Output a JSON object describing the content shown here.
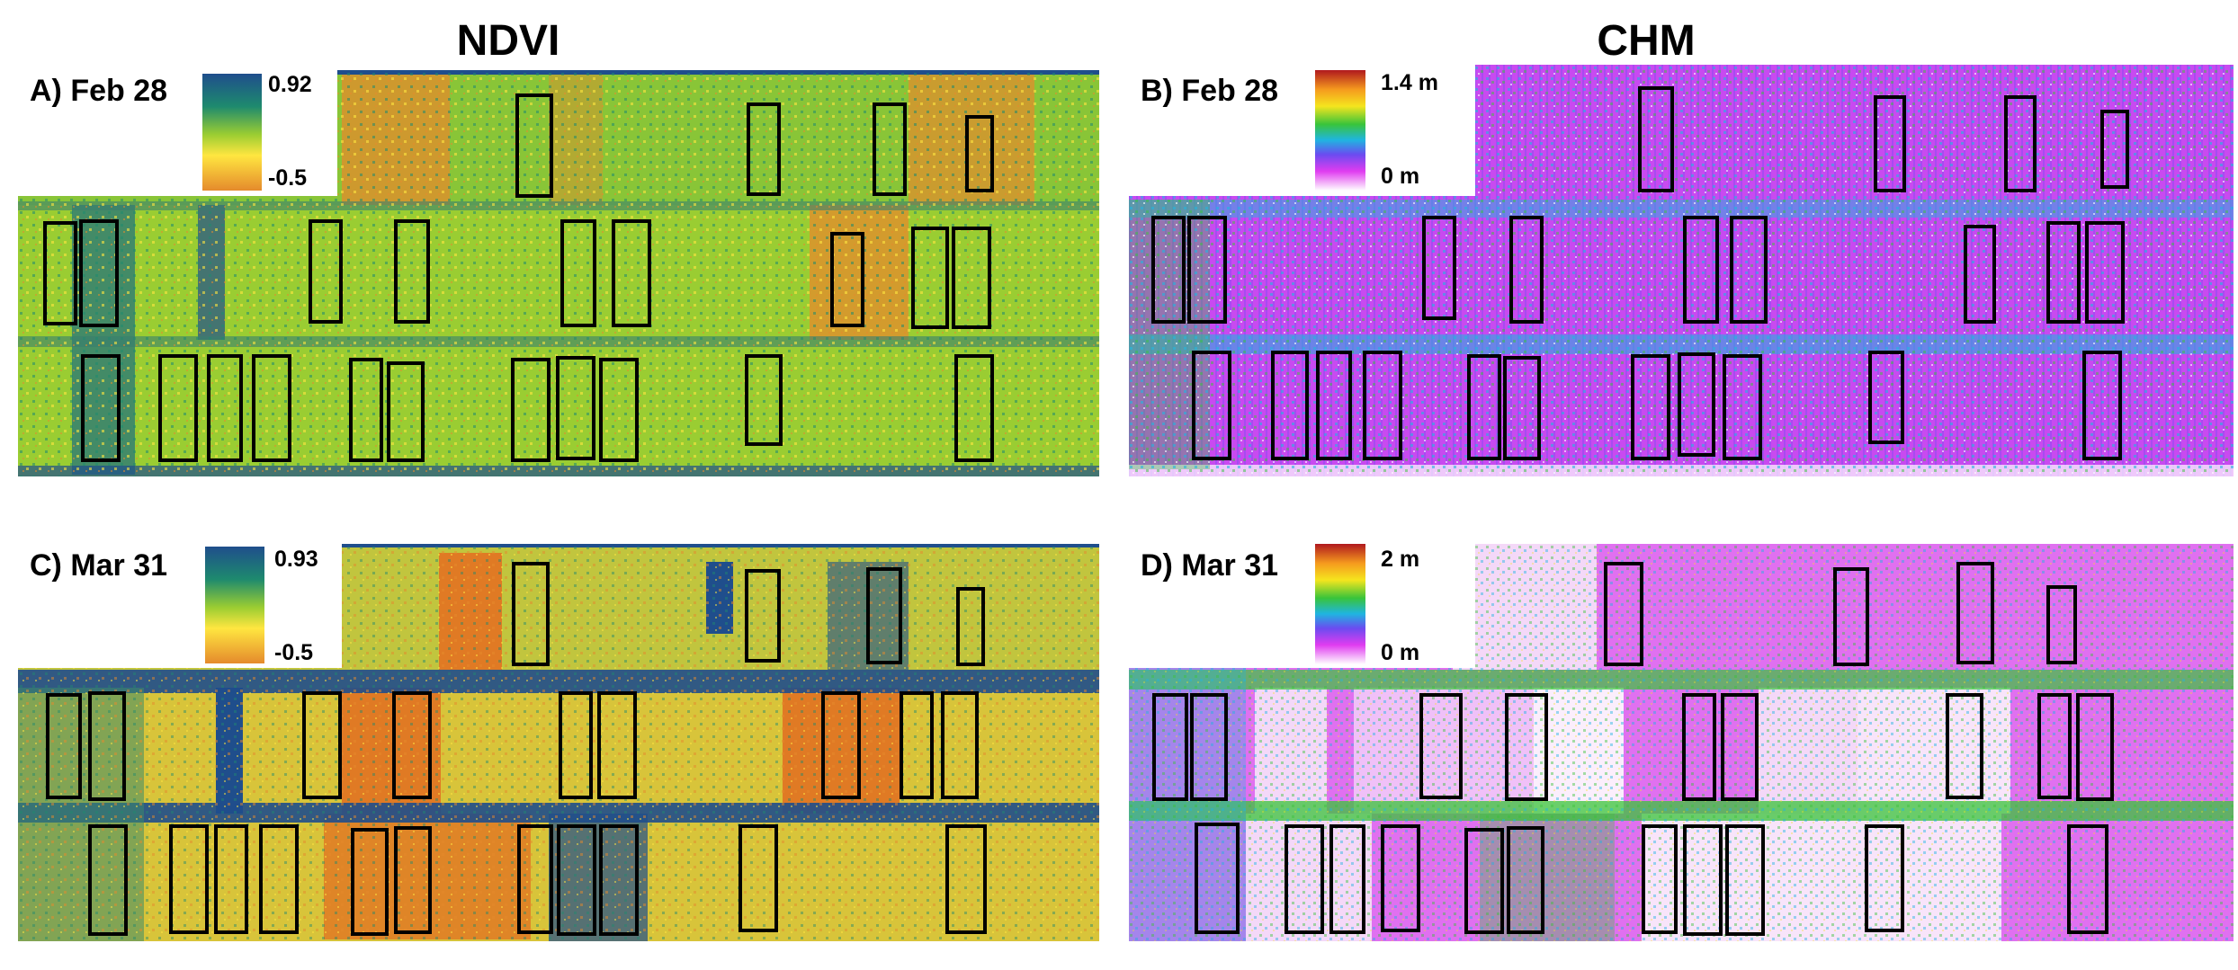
{
  "titles": {
    "left": "NDVI",
    "right": "CHM"
  },
  "panels": [
    {
      "id": "A",
      "label": "A) Feb 28",
      "kind": "ndvi",
      "scale": {
        "max": "0.92",
        "min": "-0.5"
      }
    },
    {
      "id": "B",
      "label": "B) Feb 28",
      "kind": "chm",
      "scale": {
        "max": "1.4 m",
        "min": "0 m"
      }
    },
    {
      "id": "C",
      "label": "C) Mar 31",
      "kind": "ndvi",
      "scale": {
        "max": "0.93",
        "min": "-0.5"
      }
    },
    {
      "id": "D",
      "label": "D) Mar 31",
      "kind": "chm",
      "scale": {
        "max": "2 m",
        "min": "0 m"
      }
    }
  ],
  "colors": {
    "ndvi_ramp": [
      "#1f4e8c",
      "#1e8a6e",
      "#9acd32",
      "#ffe640",
      "#e58a2c"
    ],
    "chm_ramp": [
      "#b0181e",
      "#f59a1e",
      "#f5e51e",
      "#39c43a",
      "#1fb5e0",
      "#6a4cf0",
      "#e03cf0",
      "#ffffff"
    ],
    "plot_outline": "#000000"
  }
}
